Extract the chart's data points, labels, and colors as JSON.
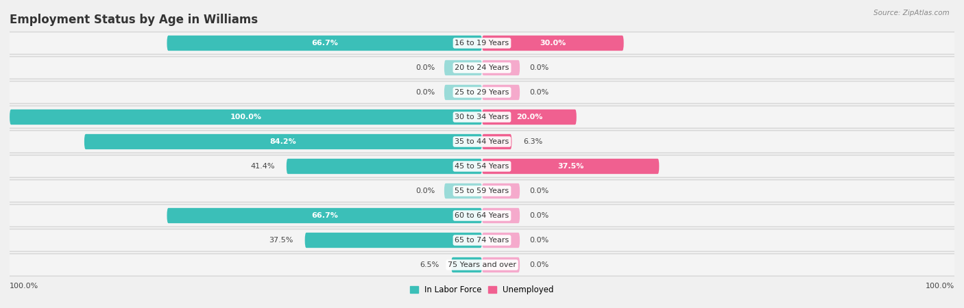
{
  "title": "Employment Status by Age in Williams",
  "source": "Source: ZipAtlas.com",
  "categories": [
    "16 to 19 Years",
    "20 to 24 Years",
    "25 to 29 Years",
    "30 to 34 Years",
    "35 to 44 Years",
    "45 to 54 Years",
    "55 to 59 Years",
    "60 to 64 Years",
    "65 to 74 Years",
    "75 Years and over"
  ],
  "labor_force": [
    66.7,
    0.0,
    0.0,
    100.0,
    84.2,
    41.4,
    0.0,
    66.7,
    37.5,
    6.5
  ],
  "unemployed": [
    30.0,
    0.0,
    0.0,
    20.0,
    6.3,
    37.5,
    0.0,
    0.0,
    0.0,
    0.0
  ],
  "labor_force_color": "#3BBFB8",
  "labor_force_color_light": "#9ADBD8",
  "unemployed_color": "#F06090",
  "unemployed_color_light": "#F5AACC",
  "labor_force_label": "In Labor Force",
  "unemployed_label": "Unemployed",
  "background_color": "#f0f0f0",
  "row_color": "#e8e8e8",
  "title_fontsize": 12,
  "bar_height": 0.62,
  "max_value": 100.0,
  "stub_size": 8.0,
  "x_left_label": "100.0%",
  "x_right_label": "100.0%"
}
